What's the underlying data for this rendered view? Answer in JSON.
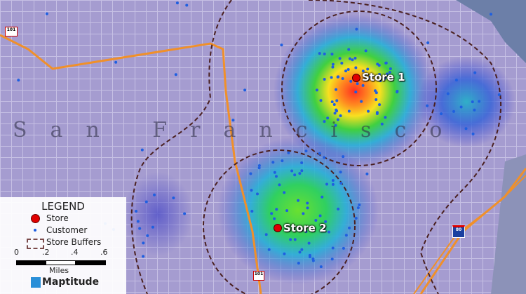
{
  "map": {
    "city_label": "San Francisco",
    "stores": [
      {
        "label": "Store 1"
      },
      {
        "label": "Store 2"
      }
    ],
    "route_shields": [
      "101",
      "101",
      "80"
    ],
    "colors": {
      "store": "#e00000",
      "customer": "#1f5fe0",
      "buffer": "#5a2a2a",
      "road": "#f0902a",
      "base": "#9c92c8"
    }
  },
  "legend": {
    "title": "LEGEND",
    "items": [
      {
        "label": "Store",
        "icon": "red-circle"
      },
      {
        "label": "Customer",
        "icon": "blue-dot"
      },
      {
        "label": "Store Buffers",
        "icon": "dashed-rectangle"
      }
    ],
    "scale": {
      "ticks": [
        "0",
        ".2",
        ".4",
        ".6"
      ],
      "unit": "Miles"
    },
    "brand": "Maptitude"
  }
}
